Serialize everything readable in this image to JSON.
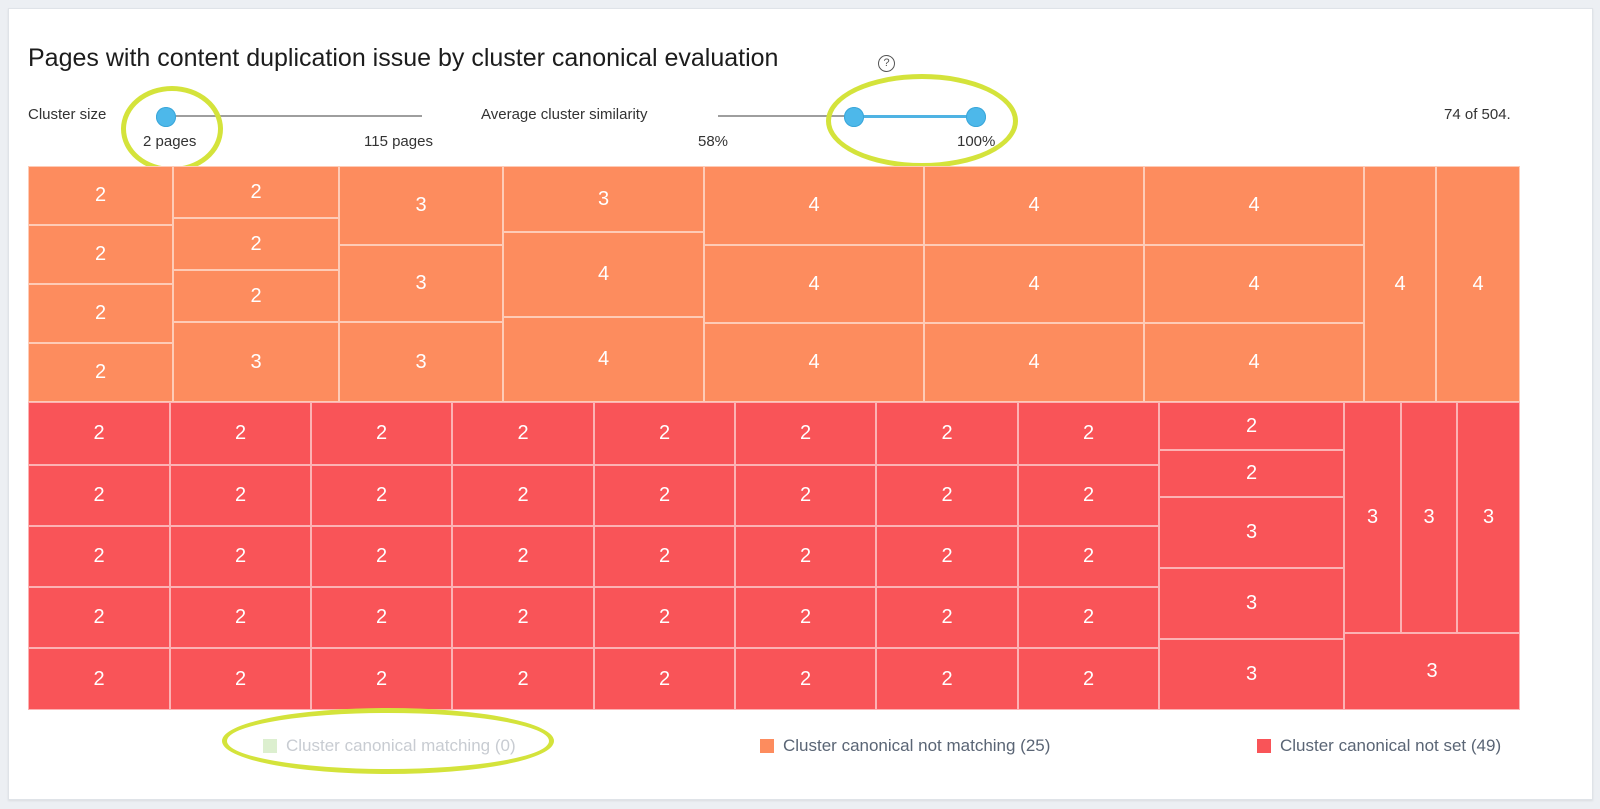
{
  "title": "Pages with content duplication issue by cluster canonical evaluation",
  "help_icon_glyph": "?",
  "filters": {
    "cluster_size": {
      "label": "Cluster size",
      "min_label": "2 pages",
      "max_label": "115 pages",
      "selected_min_fraction": 0.0
    },
    "similarity": {
      "label": "Average cluster similarity",
      "min_label": "58%",
      "max_label": "100%",
      "selected_low_fraction": 0.45,
      "selected_high_fraction": 1.0
    }
  },
  "count_text": "74 of 504.",
  "colors": {
    "matching": "#d8eec8",
    "not_matching": "#fd8c5e",
    "not_set": "#f95458",
    "highlight_ring": "#d4e33b",
    "slider_accent": "#4db8ea"
  },
  "treemap": {
    "not_matching_values": [
      2,
      2,
      2,
      2,
      2,
      2,
      2,
      3,
      3,
      3,
      3,
      3,
      4,
      4,
      4,
      4,
      4,
      4,
      4,
      4,
      4,
      4,
      4,
      4,
      4
    ],
    "not_set_values": [
      2,
      2,
      2,
      2,
      2,
      2,
      2,
      2,
      2,
      2,
      2,
      2,
      2,
      2,
      2,
      2,
      2,
      2,
      2,
      2,
      2,
      2,
      2,
      2,
      2,
      2,
      2,
      2,
      2,
      2,
      2,
      2,
      2,
      2,
      2,
      2,
      2,
      2,
      2,
      2,
      2,
      2,
      3,
      3,
      3,
      3,
      3,
      3,
      3
    ]
  },
  "legend": [
    {
      "label": "Cluster canonical matching (0)",
      "muted": true
    },
    {
      "label": "Cluster canonical not matching (25)",
      "muted": false
    },
    {
      "label": "Cluster canonical not set (49)",
      "muted": false
    }
  ]
}
